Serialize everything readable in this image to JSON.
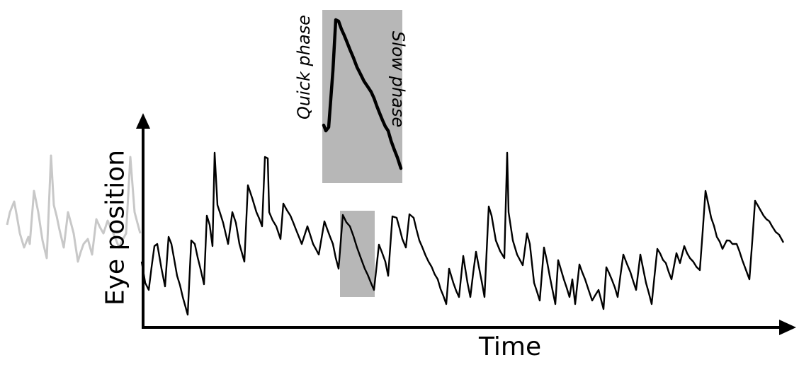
{
  "diagram": {
    "x_axis_label": "Time",
    "y_axis_label": "Eye position",
    "inset": {
      "quick_phase_label": "Quick phase",
      "slow_phase_label": "Slow phase"
    }
  },
  "colors": {
    "trace": "#000000",
    "faded_trace": "#c8c8c8",
    "highlight": "#b7b7b7",
    "axis": "#000000"
  }
}
